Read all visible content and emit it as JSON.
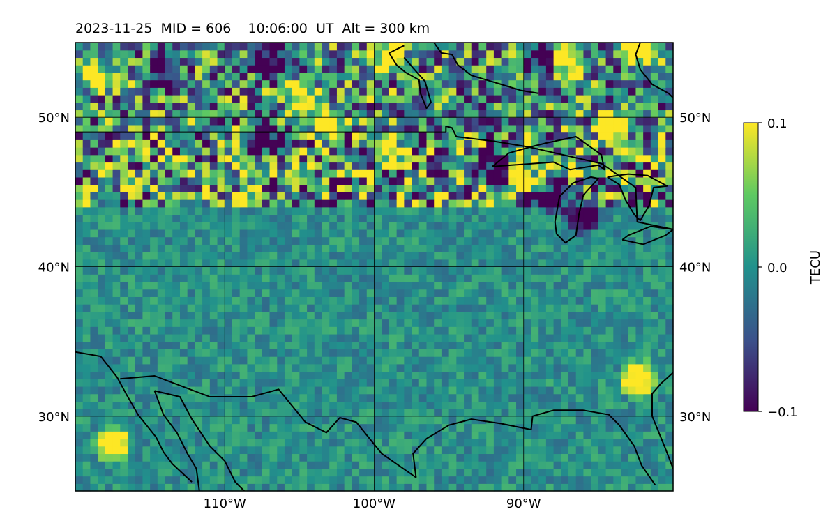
{
  "title": "2023-11-25  MID = 606    10:06:00  UT  Alt = 300 km",
  "colormap": [
    "#440154",
    "#3b528b",
    "#21918c",
    "#5ec962",
    "#fde725"
  ],
  "chart_data": {
    "type": "heatmap",
    "title": "2023-11-25  MID = 606    10:06:00  UT  Alt = 300 km",
    "projection": "plate-carree",
    "xlim": [
      -120,
      -80
    ],
    "ylim": [
      25,
      55
    ],
    "grid": true,
    "grid_resolution_deg": 0.5,
    "x_ticks": [
      {
        "value": -110,
        "label": "110°W"
      },
      {
        "value": -100,
        "label": "100°W"
      },
      {
        "value": -90,
        "label": "90°W"
      }
    ],
    "y_ticks": [
      {
        "value": 50,
        "label": "50°N"
      },
      {
        "value": 40,
        "label": "40°N"
      },
      {
        "value": 30,
        "label": "30°N"
      }
    ],
    "colorbar": {
      "label": "TECU",
      "vmin": -0.1,
      "vmax": 0.1,
      "ticks": [
        {
          "value": 0.1,
          "label": "0.1"
        },
        {
          "value": 0.0,
          "label": "0.0"
        },
        {
          "value": -0.1,
          "label": "−0.1"
        }
      ],
      "cmap": "viridis"
    },
    "field_regions": [
      {
        "lon": [
          -120,
          -80
        ],
        "lat": [
          25,
          44
        ],
        "mean": 0.0,
        "noise": 0.03
      },
      {
        "lon": [
          -120,
          -80
        ],
        "lat": [
          44,
          49
        ],
        "mean": 0.0,
        "noise": 0.12
      },
      {
        "lon": [
          -120,
          -80
        ],
        "lat": [
          49,
          55
        ],
        "mean": 0.0,
        "noise": 0.1
      }
    ],
    "features": [
      {
        "lon": -114,
        "lat": 53,
        "value": -0.1
      },
      {
        "lon": -107,
        "lat": 53.5,
        "value": -0.1
      },
      {
        "lon": -89,
        "lat": 54,
        "value": -0.1
      },
      {
        "lon": -105,
        "lat": 51.5,
        "value": 0.1
      },
      {
        "lon": -118.5,
        "lat": 52.8,
        "value": 0.1
      },
      {
        "lon": -99,
        "lat": 54.2,
        "value": 0.1
      },
      {
        "lon": -87,
        "lat": 53.5,
        "value": 0.1
      },
      {
        "lon": -82,
        "lat": 54.5,
        "value": 0.1
      },
      {
        "lon": -107,
        "lat": 48.5,
        "value": -0.1
      },
      {
        "lon": -92,
        "lat": 46.8,
        "value": -0.1
      },
      {
        "lon": -88,
        "lat": 44.8,
        "value": -0.1
      },
      {
        "lon": -86,
        "lat": 43.5,
        "value": -0.1
      },
      {
        "lon": -103,
        "lat": 49.6,
        "value": 0.1
      },
      {
        "lon": -99,
        "lat": 47.8,
        "value": 0.1
      },
      {
        "lon": -90,
        "lat": 46.5,
        "value": 0.1
      },
      {
        "lon": -84,
        "lat": 49.3,
        "value": 0.1
      },
      {
        "lon": -117.5,
        "lat": 28.2,
        "value": 0.1
      },
      {
        "lon": -82.3,
        "lat": 32.5,
        "value": 0.1
      }
    ]
  }
}
